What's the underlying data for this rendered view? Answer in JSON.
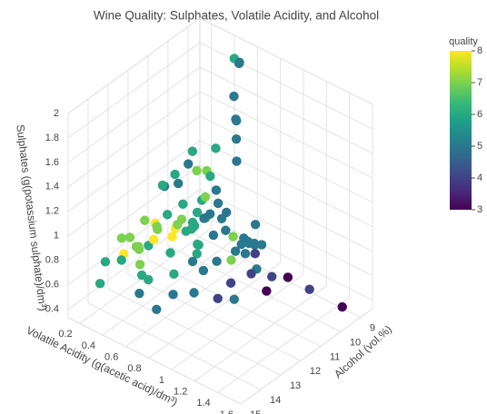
{
  "chart_data": {
    "type": "scatter3d",
    "title": "Wine Quality: Sulphates, Volatile Acidity, and Alcohol",
    "x_label": "Alcohol (vol.%)",
    "y_label": "Volatile Acidity (g(acetic acid)/dm³)",
    "z_label": "Sulphates (g(potassium sulphate)/dm³)",
    "color_label": "quality",
    "xlim": [
      8.4,
      15
    ],
    "xticks": [
      9,
      10,
      11,
      12,
      13,
      14,
      15
    ],
    "ylim": [
      0.1,
      1.6
    ],
    "yticks": [
      0.2,
      0.4,
      0.6,
      0.8,
      1,
      1.2,
      1.4,
      1.6
    ],
    "zlim": [
      0.33,
      2
    ],
    "zticks": [
      0.4,
      0.6,
      0.8,
      1,
      1.2,
      1.4,
      1.6,
      1.8,
      2
    ],
    "colorlim": [
      3,
      8
    ],
    "colorticks": [
      3,
      4,
      5,
      6,
      7,
      8
    ],
    "colorscale": [
      "#440154",
      "#482878",
      "#3e4989",
      "#31688e",
      "#26828e",
      "#1f9e89",
      "#35b779",
      "#6ece58",
      "#b5de2b",
      "#fde725"
    ],
    "grid": true,
    "x": [
      9.4,
      9.8,
      9.8,
      9.8,
      9.4,
      9.5,
      10.0,
      9.5,
      10.5,
      9.2,
      10.5,
      11.0,
      12.0,
      12.8,
      11.4,
      12.5,
      13.0,
      11.2,
      10.2,
      9.6,
      10.8,
      9.9,
      10.1,
      9.7,
      10.0,
      9.8,
      11.0,
      10.9,
      9.5,
      9.4,
      9.3,
      9.1,
      9.2,
      9.0,
      9.6,
      9.8,
      10.2,
      10.5,
      11.0,
      12.0,
      10.4,
      10.8,
      11.5,
      9.9,
      9.5,
      10.6,
      11.3,
      12.2,
      13.3,
      14.0,
      14.0,
      13.5,
      12.7,
      11.8,
      10.3,
      9.6,
      10.9,
      9.9,
      10.7,
      11.6,
      12.3,
      11.9,
      12.6,
      13.6,
      14.9,
      13.2,
      12.0,
      10.4,
      9.7,
      9.3,
      9.6,
      8.8,
      8.5,
      9.0,
      10.0,
      11.1,
      12.4,
      13.0,
      11.4,
      10.6,
      11.7,
      12.9,
      10.2,
      9.4,
      14.2,
      13.8,
      12.5,
      11.0,
      12.1,
      11.5,
      10.9,
      9.8,
      10.6,
      11.3,
      9.9
    ],
    "y": [
      0.7,
      0.88,
      0.76,
      0.28,
      0.66,
      0.6,
      0.65,
      0.58,
      0.5,
      0.62,
      0.39,
      0.43,
      0.35,
      0.31,
      0.38,
      0.41,
      0.37,
      0.56,
      0.53,
      0.45,
      0.47,
      0.84,
      1.02,
      1.09,
      1.33,
      1.58,
      1.13,
      0.98,
      0.61,
      0.59,
      0.6,
      0.52,
      0.58,
      0.5,
      0.62,
      0.66,
      0.55,
      0.4,
      0.45,
      0.4,
      0.42,
      0.3,
      0.33,
      0.45,
      0.35,
      0.64,
      0.58,
      0.28,
      0.27,
      0.25,
      0.39,
      0.48,
      0.62,
      0.72,
      0.79,
      0.78,
      0.68,
      0.41,
      0.34,
      0.46,
      0.52,
      0.26,
      0.22,
      0.34,
      0.36,
      0.7,
      0.88,
      0.94,
      0.72,
      0.48,
      0.12,
      0.4,
      0.6,
      0.68,
      0.23,
      0.2,
      0.26,
      0.45,
      0.61,
      0.57,
      0.39,
      0.36,
      0.36,
      0.29,
      0.58,
      0.66,
      0.76,
      0.82,
      1.04,
      0.25,
      0.32,
      0.39,
      0.46,
      0.54,
      0.55
    ],
    "z": [
      0.56,
      0.68,
      0.65,
      0.58,
      0.56,
      0.46,
      0.47,
      0.57,
      0.8,
      0.54,
      0.66,
      0.72,
      0.84,
      0.75,
      0.7,
      0.82,
      0.78,
      0.62,
      0.64,
      0.9,
      0.76,
      0.6,
      0.52,
      0.5,
      0.55,
      0.5,
      0.56,
      0.62,
      1.2,
      1.36,
      1.98,
      1.95,
      1.95,
      1.62,
      1.56,
      1.59,
      1.36,
      1.3,
      1.28,
      1.2,
      1.14,
      1.1,
      1.1,
      1.05,
      1.0,
      1.0,
      0.98,
      0.88,
      0.86,
      0.74,
      0.82,
      0.68,
      0.66,
      0.63,
      0.7,
      0.62,
      0.58,
      0.69,
      0.74,
      0.86,
      0.74,
      0.63,
      0.76,
      0.8,
      0.72,
      0.59,
      0.5,
      0.58,
      0.52,
      0.55,
      0.8,
      0.6,
      0.56,
      0.49,
      0.73,
      0.64,
      0.68,
      0.57,
      0.74,
      0.88,
      0.92,
      0.64,
      0.63,
      0.72,
      0.66,
      0.52,
      0.55,
      0.48,
      0.58,
      0.76,
      0.68,
      0.84,
      0.58,
      0.56,
      0.75
    ],
    "quality": [
      5,
      5,
      5,
      6,
      5,
      5,
      7,
      7,
      5,
      5,
      6,
      6,
      7,
      7,
      8,
      8,
      7,
      6,
      5,
      5,
      6,
      4,
      4,
      3,
      4,
      3,
      3,
      4,
      5,
      5,
      5,
      6,
      5,
      5,
      5,
      5,
      6,
      6,
      5,
      6,
      7,
      6,
      5,
      6,
      7,
      5,
      6,
      7,
      7,
      6,
      6,
      6,
      6,
      5,
      5,
      5,
      5,
      6,
      7,
      7,
      6,
      6,
      7,
      8,
      6,
      5,
      4,
      5,
      5,
      5,
      5,
      5,
      5,
      5,
      6,
      7,
      7,
      6,
      6,
      5,
      6,
      7,
      7,
      6,
      5,
      5,
      5,
      4,
      5,
      8,
      8,
      7,
      6,
      5,
      5
    ]
  }
}
